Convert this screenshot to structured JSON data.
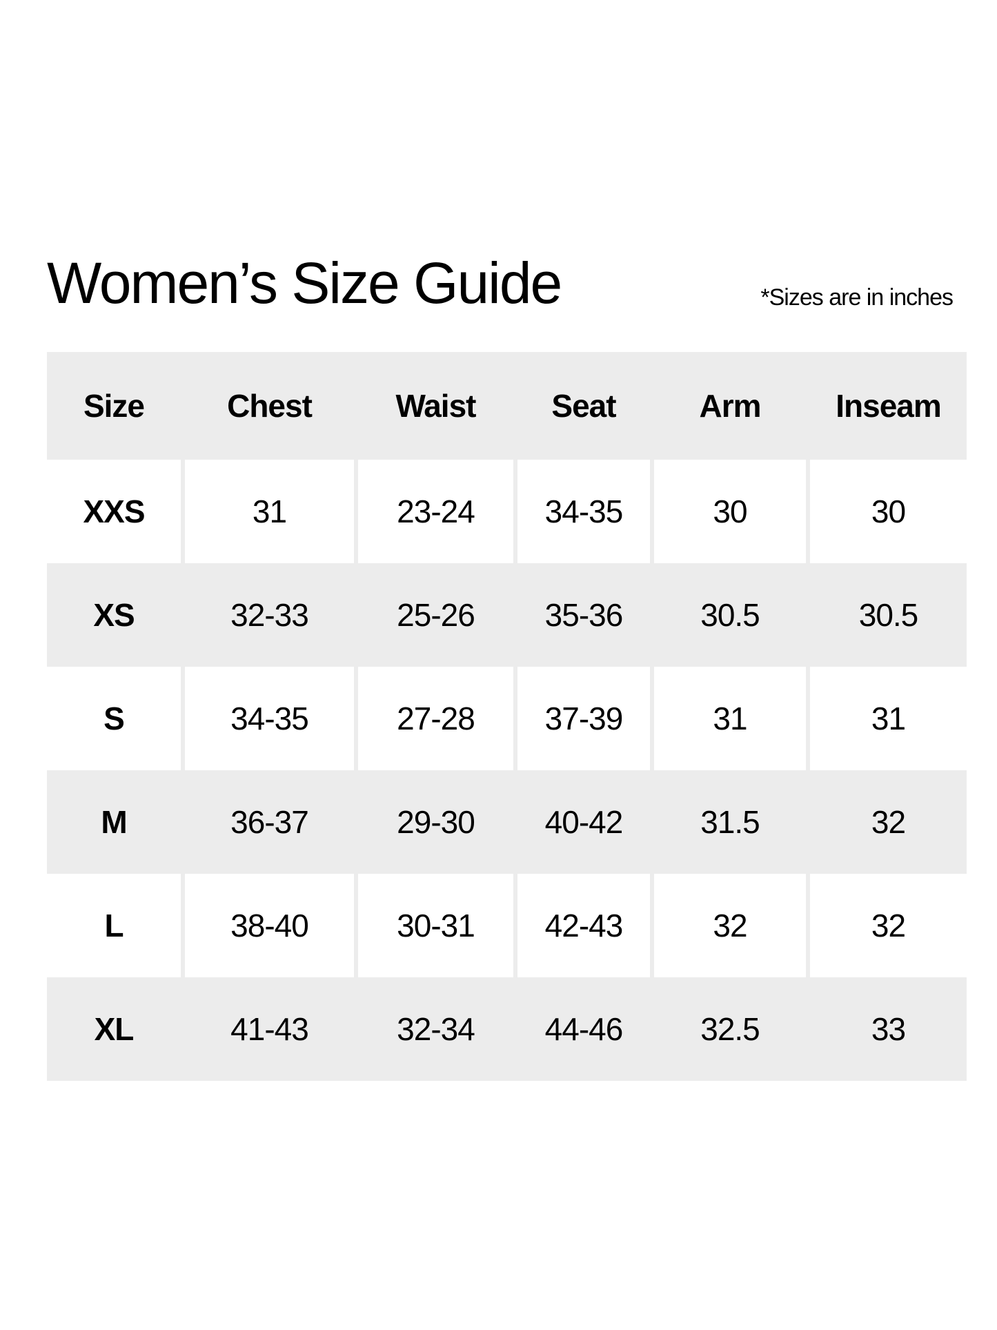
{
  "title": "Women’s Size Guide",
  "note": "*Sizes are in inches",
  "colors": {
    "stripe": "#ececec",
    "background": "#ffffff",
    "text": "#000000"
  },
  "table": {
    "headers": [
      "Size",
      "Chest",
      "Waist",
      "Seat",
      "Arm",
      "Inseam"
    ],
    "rows": [
      [
        "XXS",
        "31",
        "23-24",
        "34-35",
        "30",
        "30"
      ],
      [
        "XS",
        "32-33",
        "25-26",
        "35-36",
        "30.5",
        "30.5"
      ],
      [
        "S",
        "34-35",
        "27-28",
        "37-39",
        "31",
        "31"
      ],
      [
        "M",
        "36-37",
        "29-30",
        "40-42",
        "31.5",
        "32"
      ],
      [
        "L",
        "38-40",
        "30-31",
        "42-43",
        "32",
        "32"
      ],
      [
        "XL",
        "41-43",
        "32-34",
        "44-46",
        "32.5",
        "33"
      ]
    ]
  }
}
